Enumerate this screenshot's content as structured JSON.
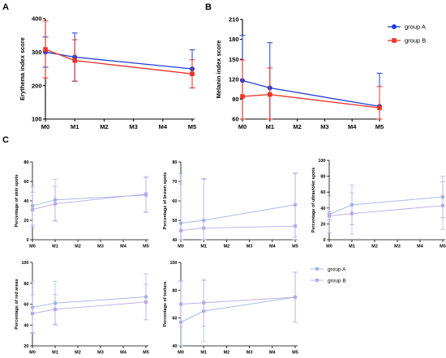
{
  "panels": [
    "A",
    "B",
    "C"
  ],
  "colors": {
    "group_a": "#1f3fd6",
    "group_b": "#e8332a",
    "group_a_light": "#9db3e8",
    "group_b_light": "#b9a9ea"
  },
  "chart_data": [
    {
      "type": "line",
      "panel": "A",
      "ylabel": "Erythema index score",
      "categories": [
        "M0",
        "M1",
        "M2",
        "M3",
        "M4",
        "M5"
      ],
      "x": [
        0,
        1,
        5
      ],
      "ylim": [
        100,
        400
      ],
      "yticks": [
        100,
        200,
        300,
        400
      ],
      "series": [
        {
          "name": "group A",
          "values": [
            300,
            285,
            250
          ],
          "err": [
            45,
            72,
            57
          ]
        },
        {
          "name": "group B",
          "values": [
            308,
            275,
            235
          ],
          "err": [
            85,
            62,
            42
          ]
        }
      ]
    },
    {
      "type": "line",
      "panel": "B",
      "ylabel": "Melanin index score",
      "categories": [
        "M0",
        "M1",
        "M2",
        "M3",
        "M4",
        "M5"
      ],
      "x": [
        0,
        1,
        5
      ],
      "ylim": [
        60,
        210
      ],
      "yticks": [
        60,
        90,
        120,
        150,
        180,
        210
      ],
      "legend_position": "top-right",
      "series": [
        {
          "name": "group A",
          "values": [
            118,
            107,
            79
          ],
          "err": [
            68,
            68,
            50
          ]
        },
        {
          "name": "group B",
          "values": [
            94,
            97,
            77
          ],
          "err": [
            55,
            40,
            32
          ]
        }
      ]
    },
    {
      "type": "line",
      "panel": "C",
      "ylabel": "Percentage of skin spots",
      "categories": [
        "M0",
        "M1",
        "M2",
        "M3",
        "M4",
        "M5"
      ],
      "x": [
        0,
        1,
        5
      ],
      "ylim": [
        0,
        80
      ],
      "yticks": [
        0,
        20,
        40,
        60,
        80
      ],
      "series": [
        {
          "name": "group A",
          "values": [
            35,
            41,
            46
          ],
          "err": [
            20,
            21,
            18
          ]
        },
        {
          "name": "group B",
          "values": [
            31,
            37,
            47
          ],
          "err": [
            18,
            18,
            18
          ]
        }
      ]
    },
    {
      "type": "line",
      "panel": "C",
      "ylabel": "Percentage of brown spots",
      "categories": [
        "M0",
        "M1",
        "M2",
        "M3",
        "M4",
        "M5"
      ],
      "x": [
        0,
        1,
        5
      ],
      "ylim": [
        40,
        80
      ],
      "yticks": [
        40,
        50,
        60,
        70,
        80
      ],
      "series": [
        {
          "name": "group A",
          "values": [
            48.5,
            50,
            58
          ],
          "err": [
            25.5,
            21.5,
            16.5
          ]
        },
        {
          "name": "group B",
          "values": [
            44.7,
            46,
            47
          ],
          "err": [
            24,
            25,
            27
          ]
        }
      ]
    },
    {
      "type": "line",
      "panel": "C",
      "ylabel": "Percentage of ultraviolet spots",
      "categories": [
        "M0",
        "M1",
        "M2",
        "M3",
        "M4",
        "M5"
      ],
      "x": [
        0,
        1,
        5
      ],
      "ylim": [
        0,
        100
      ],
      "yticks": [
        0,
        20,
        40,
        60,
        80,
        100
      ],
      "series": [
        {
          "name": "group A",
          "values": [
            32,
            44,
            54
          ],
          "err": [
            23,
            25,
            26
          ]
        },
        {
          "name": "group B",
          "values": [
            30,
            33,
            43
          ],
          "err": [
            5,
            26,
            30
          ]
        }
      ]
    },
    {
      "type": "line",
      "panel": "C",
      "ylabel": "Percentage of red areas",
      "categories": [
        "M0",
        "M1",
        "M2",
        "M3",
        "M4",
        "M5"
      ],
      "x": [
        0,
        1,
        5
      ],
      "ylim": [
        20,
        100
      ],
      "yticks": [
        20,
        40,
        60,
        80,
        100
      ],
      "series": [
        {
          "name": "group A",
          "values": [
            57,
            61,
            67
          ],
          "err": [
            25,
            21,
            22
          ]
        },
        {
          "name": "group B",
          "values": [
            51,
            55,
            62
          ],
          "err": [
            18,
            14,
            17
          ]
        }
      ]
    },
    {
      "type": "line",
      "panel": "C",
      "ylabel": "Percentage of texture",
      "categories": [
        "M0",
        "M1",
        "M2",
        "M3",
        "M4",
        "M5"
      ],
      "x": [
        0,
        1,
        5
      ],
      "ylim": [
        40,
        100
      ],
      "yticks": [
        40,
        60,
        80,
        100
      ],
      "legend_position": "right",
      "series": [
        {
          "name": "group A",
          "values": [
            57,
            65,
            75
          ],
          "err": [
            30,
            22,
            18
          ]
        },
        {
          "name": "group B",
          "values": [
            70,
            71,
            75
          ],
          "err": [
            16,
            17,
            18
          ]
        }
      ]
    }
  ]
}
